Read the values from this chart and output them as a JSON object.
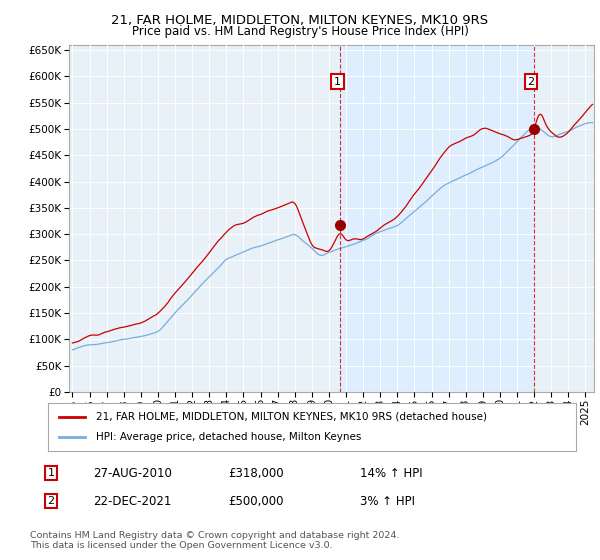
{
  "title": "21, FAR HOLME, MIDDLETON, MILTON KEYNES, MK10 9RS",
  "subtitle": "Price paid vs. HM Land Registry's House Price Index (HPI)",
  "legend_line1": "21, FAR HOLME, MIDDLETON, MILTON KEYNES, MK10 9RS (detached house)",
  "legend_line2": "HPI: Average price, detached house, Milton Keynes",
  "annotation1": {
    "label": "1",
    "date": "27-AUG-2010",
    "price": "£318,000",
    "hpi": "14% ↑ HPI",
    "x_year": 2010.65,
    "y_val": 318000
  },
  "annotation2": {
    "label": "2",
    "date": "22-DEC-2021",
    "price": "£500,000",
    "hpi": "3% ↑ HPI",
    "x_year": 2021.97,
    "y_val": 500000
  },
  "footer": "Contains HM Land Registry data © Crown copyright and database right 2024.\nThis data is licensed under the Open Government Licence v3.0.",
  "hpi_color": "#7aaddc",
  "price_color": "#cc0000",
  "shade_color": "#ddeeff",
  "background_color": "#e8f0f8",
  "ylim": [
    0,
    660000
  ],
  "xlim_start": 1994.8,
  "xlim_end": 2025.5
}
